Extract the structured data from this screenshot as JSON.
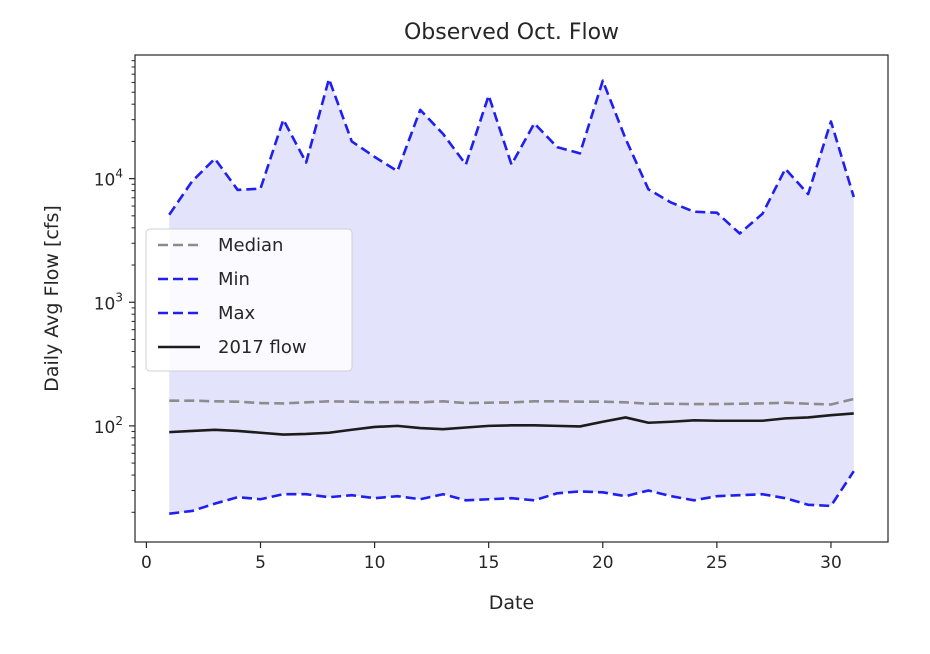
{
  "chart_data": {
    "type": "line",
    "title": "Observed Oct. Flow",
    "xlabel": "Date",
    "ylabel": "Daily Avg Flow [cfs]",
    "yscale": "log",
    "xlim": [
      -0.5,
      32.5
    ],
    "ylim": [
      11.5,
      100000
    ],
    "xticks": [
      0,
      5,
      10,
      15,
      20,
      25,
      30
    ],
    "yticks": [
      {
        "value": 100,
        "base": "10",
        "exp": "2"
      },
      {
        "value": 1000,
        "base": "10",
        "exp": "3"
      },
      {
        "value": 10000,
        "base": "10",
        "exp": "4"
      }
    ],
    "grid": false,
    "legend_position": "center-left",
    "x": [
      1,
      2,
      3,
      4,
      5,
      6,
      7,
      8,
      9,
      10,
      11,
      12,
      13,
      14,
      15,
      16,
      17,
      18,
      19,
      20,
      21,
      22,
      23,
      24,
      25,
      26,
      27,
      28,
      29,
      30,
      31
    ],
    "fill": {
      "between": [
        "Min",
        "Max"
      ],
      "color": "#e3e3fb"
    },
    "series": [
      {
        "name": "Median",
        "color": "#8c8c8c",
        "dash": "dashed",
        "values": [
          160,
          160,
          158,
          157,
          153,
          152,
          155,
          158,
          157,
          155,
          156,
          155,
          158,
          153,
          154,
          155,
          158,
          158,
          157,
          157,
          155,
          151,
          151,
          150,
          150,
          151,
          152,
          154,
          151,
          149,
          165
        ]
      },
      {
        "name": "Min",
        "color": "#1f1ff0",
        "dash": "dashed",
        "values": [
          19.5,
          20.5,
          23.5,
          26.5,
          25.5,
          28,
          28,
          26.5,
          27.5,
          26,
          27,
          25.5,
          28,
          25,
          25.5,
          26,
          25,
          28.5,
          29.5,
          29,
          27,
          30,
          27,
          25,
          27,
          27.5,
          28,
          26,
          23,
          22.5,
          43
        ]
      },
      {
        "name": "Max",
        "color": "#1f1ff0",
        "dash": "dashed",
        "values": [
          5100,
          9500,
          14500,
          8100,
          8300,
          30000,
          13500,
          64000,
          20000,
          15000,
          11500,
          36000,
          23000,
          13000,
          47000,
          13000,
          28000,
          18000,
          16000,
          62000,
          21000,
          8200,
          6400,
          5400,
          5300,
          3600,
          5200,
          12000,
          7500,
          29000,
          7100
        ]
      },
      {
        "name": "2017 flow",
        "color": "#1c1c1c",
        "dash": "solid",
        "values": [
          89,
          91,
          93,
          91,
          88,
          85,
          86,
          88,
          93,
          98,
          100,
          96,
          94,
          97,
          100,
          101,
          101,
          100,
          99,
          108,
          117,
          106,
          108,
          111,
          110,
          110,
          110,
          115,
          117,
          122,
          126
        ]
      }
    ]
  }
}
